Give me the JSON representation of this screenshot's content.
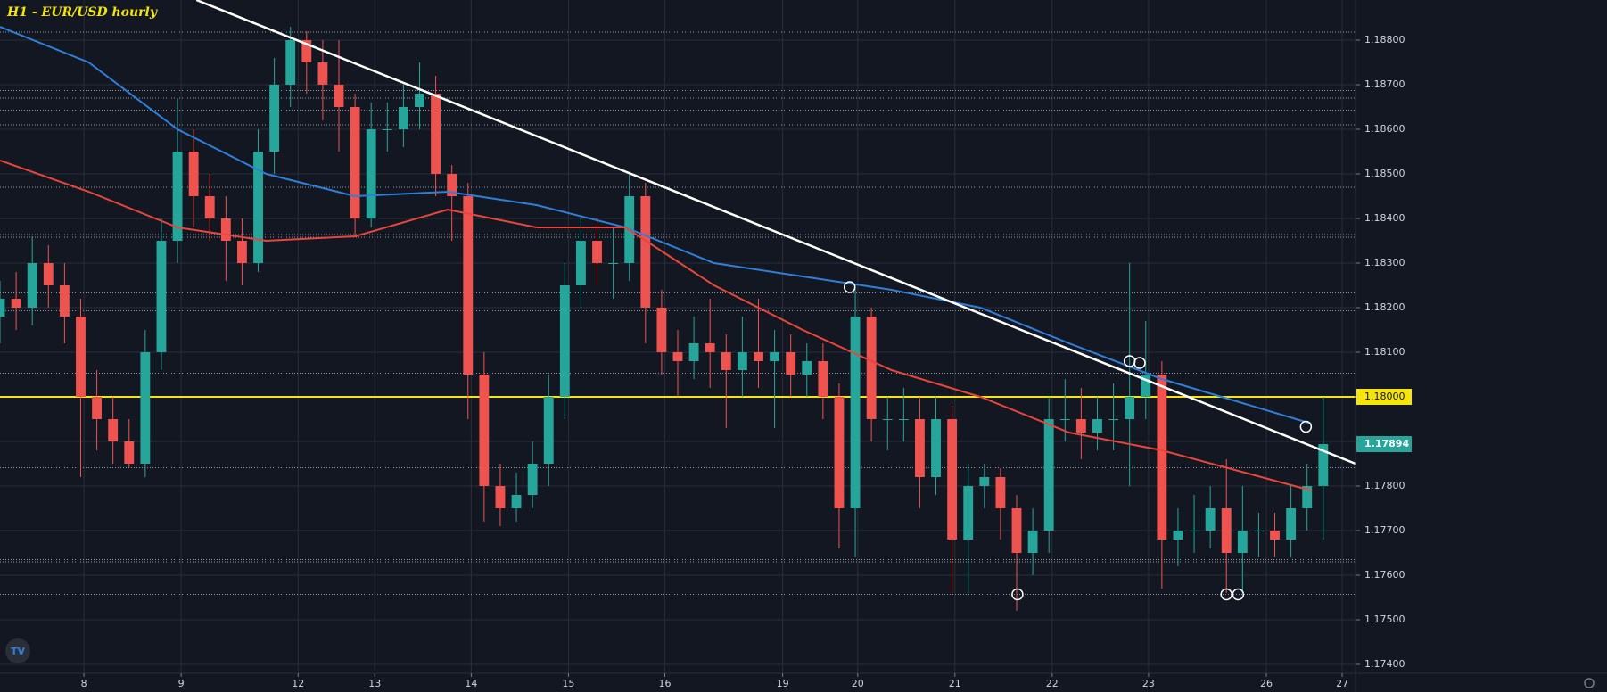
{
  "chart_data": {
    "type": "candlestick",
    "title": "H1 - EUR/USD hourly",
    "x": [
      0,
      4,
      8,
      12,
      16,
      20,
      24,
      28,
      32,
      36,
      40,
      44,
      48,
      52,
      56,
      60,
      64,
      68,
      72,
      76,
      80,
      84,
      88,
      92,
      96,
      100,
      104,
      108,
      112,
      116,
      120,
      124,
      128,
      132,
      136,
      140,
      144,
      148,
      152,
      156,
      160,
      164,
      168,
      172,
      176,
      180,
      184,
      188,
      192,
      196,
      200,
      204,
      208,
      212,
      216,
      220,
      224,
      228,
      232,
      236,
      240,
      244,
      248,
      252,
      256,
      260,
      264,
      268,
      272,
      276,
      280,
      284,
      288,
      292,
      296,
      300,
      304,
      308,
      312,
      316,
      320,
      324,
      328
    ],
    "open": [
      1.1818,
      1.1822,
      1.182,
      1.183,
      1.1825,
      1.1818,
      1.18,
      1.1795,
      1.179,
      1.1785,
      1.181,
      1.1835,
      1.1855,
      1.1845,
      1.184,
      1.1835,
      1.183,
      1.1855,
      1.187,
      1.188,
      1.1875,
      1.187,
      1.1865,
      1.184,
      1.186,
      1.186,
      1.1865,
      1.1868,
      1.185,
      1.1845,
      1.1805,
      1.178,
      1.1775,
      1.1778,
      1.1785,
      1.18,
      1.1825,
      1.1835,
      1.183,
      1.183,
      1.1845,
      1.182,
      1.181,
      1.1808,
      1.1812,
      1.181,
      1.1806,
      1.181,
      1.1808,
      1.181,
      1.1805,
      1.1808,
      1.18,
      1.1775,
      1.1818,
      1.1795,
      1.1795,
      1.1795,
      1.1782,
      1.1795,
      1.1768,
      1.178,
      1.1782,
      1.1775,
      1.1765,
      1.177,
      1.1795,
      1.1795,
      1.1792,
      1.1795,
      1.1795,
      1.18,
      1.1805,
      1.1768,
      1.177,
      1.177,
      1.1775,
      1.1765,
      1.177,
      1.177,
      1.1768,
      1.1775,
      1.178
    ],
    "high": [
      1.1826,
      1.1828,
      1.1836,
      1.1834,
      1.183,
      1.1822,
      1.1806,
      1.18,
      1.1795,
      1.1815,
      1.184,
      1.1867,
      1.186,
      1.185,
      1.1845,
      1.184,
      1.186,
      1.1876,
      1.1883,
      1.1882,
      1.188,
      1.188,
      1.1868,
      1.1866,
      1.1866,
      1.187,
      1.1875,
      1.1872,
      1.1852,
      1.1848,
      1.181,
      1.1785,
      1.1783,
      1.179,
      1.1805,
      1.183,
      1.184,
      1.184,
      1.1838,
      1.185,
      1.1848,
      1.1824,
      1.1815,
      1.1818,
      1.1822,
      1.1814,
      1.1818,
      1.1822,
      1.1815,
      1.1814,
      1.1812,
      1.1812,
      1.1803,
      1.1825,
      1.182,
      1.18,
      1.1802,
      1.18,
      1.18,
      1.1798,
      1.1785,
      1.1785,
      1.1784,
      1.1778,
      1.1775,
      1.18,
      1.1804,
      1.1802,
      1.18,
      1.1803,
      1.183,
      1.1817,
      1.1808,
      1.1775,
      1.1778,
      1.178,
      1.1786,
      1.178,
      1.1774,
      1.1774,
      1.178,
      1.1785,
      1.18
    ],
    "low": [
      1.1812,
      1.1815,
      1.1816,
      1.182,
      1.1812,
      1.1782,
      1.1788,
      1.1785,
      1.1784,
      1.1782,
      1.1806,
      1.183,
      1.1838,
      1.1835,
      1.1826,
      1.1825,
      1.1828,
      1.185,
      1.1865,
      1.1868,
      1.1862,
      1.1855,
      1.1836,
      1.1838,
      1.1855,
      1.1856,
      1.186,
      1.1845,
      1.1835,
      1.1795,
      1.1772,
      1.1771,
      1.1772,
      1.1775,
      1.178,
      1.1795,
      1.182,
      1.1825,
      1.1822,
      1.1826,
      1.1812,
      1.1805,
      1.18,
      1.1804,
      1.1802,
      1.1793,
      1.18,
      1.1802,
      1.1793,
      1.18,
      1.18,
      1.1795,
      1.1766,
      1.1764,
      1.179,
      1.1788,
      1.179,
      1.1775,
      1.1778,
      1.1756,
      1.1756,
      1.1775,
      1.1768,
      1.1752,
      1.176,
      1.1765,
      1.179,
      1.1786,
      1.1788,
      1.1788,
      1.178,
      1.1795,
      1.1757,
      1.1762,
      1.1765,
      1.1766,
      1.1756,
      1.1756,
      1.1764,
      1.1764,
      1.1764,
      1.177,
      1.1768
    ],
    "close": [
      1.1822,
      1.182,
      1.183,
      1.1825,
      1.1818,
      1.18,
      1.1795,
      1.179,
      1.1785,
      1.181,
      1.1835,
      1.1855,
      1.1845,
      1.184,
      1.1835,
      1.183,
      1.1855,
      1.187,
      1.188,
      1.1875,
      1.187,
      1.1865,
      1.184,
      1.186,
      1.186,
      1.1865,
      1.1868,
      1.185,
      1.1845,
      1.1805,
      1.178,
      1.1775,
      1.1778,
      1.1785,
      1.18,
      1.1825,
      1.1835,
      1.183,
      1.183,
      1.1845,
      1.182,
      1.181,
      1.1808,
      1.1812,
      1.181,
      1.1806,
      1.181,
      1.1808,
      1.181,
      1.1805,
      1.1808,
      1.18,
      1.1775,
      1.1818,
      1.1795,
      1.1795,
      1.1795,
      1.1782,
      1.1795,
      1.1768,
      1.178,
      1.1782,
      1.1775,
      1.1765,
      1.177,
      1.1795,
      1.1795,
      1.1792,
      1.1795,
      1.1795,
      1.18,
      1.1805,
      1.1768,
      1.177,
      1.177,
      1.1775,
      1.1765,
      1.177,
      1.177,
      1.1768,
      1.1775,
      1.178,
      1.17894
    ],
    "up_color": "#26a69a",
    "down_color": "#ef5350",
    "series": [
      {
        "color": "#2f7fd9",
        "x": [
          0,
          22,
          44,
          66,
          88,
          111,
          133,
          155,
          177,
          199,
          221,
          243,
          265,
          288,
          325
        ],
        "values": [
          1.1883,
          1.1875,
          1.186,
          1.185,
          1.1845,
          1.1846,
          1.1843,
          1.1838,
          1.183,
          1.1827,
          1.1824,
          1.182,
          1.1812,
          1.1804,
          1.1794
        ]
      },
      {
        "color": "#e8453c",
        "x": [
          0,
          22,
          44,
          66,
          88,
          111,
          133,
          155,
          177,
          199,
          221,
          243,
          265,
          288,
          325
        ],
        "values": [
          1.1853,
          1.1846,
          1.1838,
          1.1835,
          1.1836,
          1.1842,
          1.1838,
          1.1838,
          1.1825,
          1.1815,
          1.1806,
          1.18,
          1.1792,
          1.1788,
          1.1779
        ]
      }
    ],
    "trendline": {
      "color": "#ffffff",
      "x": [
        48.7,
        336
      ],
      "y": [
        1.1889,
        1.1785
      ]
    },
    "level": {
      "color": "#f5e50d",
      "value": 1.18,
      "label": "1.18000"
    },
    "levels": [
      1.18818,
      1.18687,
      1.1867,
      1.18643,
      1.1861,
      1.1847,
      1.18364,
      1.18358,
      1.18233,
      1.18193,
      1.18053,
      1.17841,
      1.17635,
      1.1763,
      1.17557
    ],
    "markers": {
      "x": [
        210.6,
        280,
        282.5,
        252.2,
        304,
        306.9,
        323.7
      ],
      "y": [
        1.18246,
        1.1808,
        1.18076,
        1.17557,
        1.17557,
        1.17557,
        1.17933
      ]
    },
    "xlim": [
      0,
      336
    ],
    "xticks": [
      {
        "value": 20.8,
        "label": "8"
      },
      {
        "value": 44.9,
        "label": "9"
      },
      {
        "value": 73.9,
        "label": "12"
      },
      {
        "value": 92.9,
        "label": "13"
      },
      {
        "value": 116.8,
        "label": "14"
      },
      {
        "value": 140.9,
        "label": "15"
      },
      {
        "value": 164.8,
        "label": "16"
      },
      {
        "value": 194,
        "label": "19"
      },
      {
        "value": 212.6,
        "label": "20"
      },
      {
        "value": 236.7,
        "label": "21"
      },
      {
        "value": 260.8,
        "label": "22"
      },
      {
        "value": 284.7,
        "label": "23"
      },
      {
        "value": 313.9,
        "label": "26"
      },
      {
        "value": 332.7,
        "label": "27"
      }
    ],
    "ylim": [
      1.1738,
      1.1889
    ],
    "yticks": [
      {
        "value": 1.174,
        "label": "1.17400"
      },
      {
        "value": 1.175,
        "label": "1.17500"
      },
      {
        "value": 1.176,
        "label": "1.17600"
      },
      {
        "value": 1.177,
        "label": "1.17700"
      },
      {
        "value": 1.178,
        "label": "1.17800"
      },
      {
        "value": 1.179,
        "label": "1.17900"
      },
      {
        "value": 1.18,
        "label": "1.18000"
      },
      {
        "value": 1.181,
        "label": "1.18100"
      },
      {
        "value": 1.182,
        "label": "1.18200"
      },
      {
        "value": 1.183,
        "label": "1.18300"
      },
      {
        "value": 1.184,
        "label": "1.18400"
      },
      {
        "value": 1.185,
        "label": "1.18500"
      },
      {
        "value": 1.186,
        "label": "1.18600"
      },
      {
        "value": 1.187,
        "label": "1.18700"
      },
      {
        "value": 1.188,
        "label": "1.18800"
      }
    ],
    "grid": true
  }
}
